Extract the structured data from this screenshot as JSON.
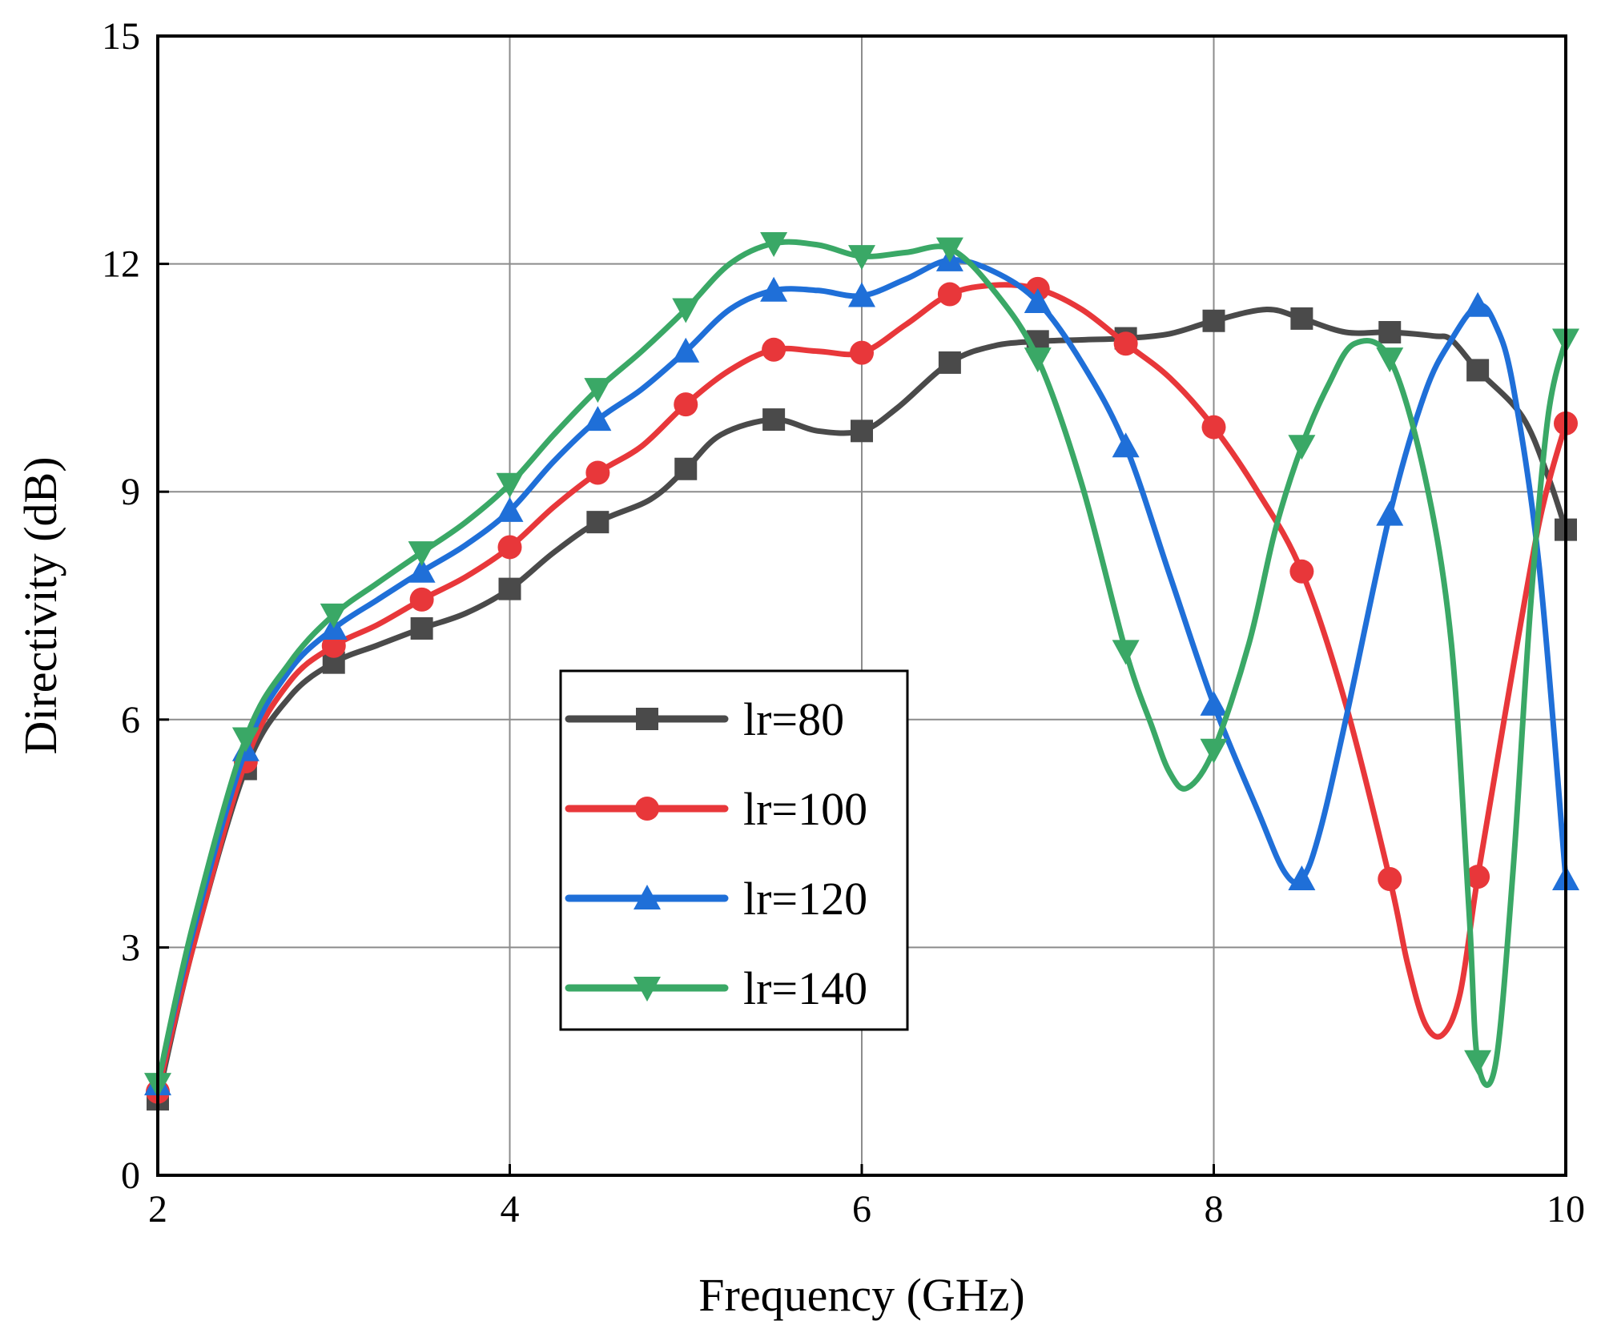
{
  "chart_data": {
    "type": "line",
    "title": "",
    "xlabel": "Frequency (GHz)",
    "ylabel": "Directivity (dB)",
    "xlim": [
      2,
      10
    ],
    "ylim": [
      0,
      15
    ],
    "xticks": [
      2,
      4,
      6,
      8,
      10
    ],
    "yticks": [
      0,
      3,
      6,
      9,
      12,
      15
    ],
    "grid": true,
    "legend_position": "center-left",
    "series": [
      {
        "name": "lr=80",
        "color": "#4a4a4a",
        "marker": "square",
        "points": [
          [
            2,
            1.0
          ],
          [
            2.2,
            3.0
          ],
          [
            2.5,
            5.35
          ],
          [
            2.75,
            6.3
          ],
          [
            3,
            6.75
          ],
          [
            3.25,
            6.98
          ],
          [
            3.5,
            7.2
          ],
          [
            3.75,
            7.4
          ],
          [
            4,
            7.72
          ],
          [
            4.25,
            8.2
          ],
          [
            4.5,
            8.6
          ],
          [
            4.8,
            8.9
          ],
          [
            5,
            9.3
          ],
          [
            5.2,
            9.75
          ],
          [
            5.5,
            9.95
          ],
          [
            5.75,
            9.8
          ],
          [
            6,
            9.8
          ],
          [
            6.2,
            10.1
          ],
          [
            6.5,
            10.7
          ],
          [
            6.75,
            10.92
          ],
          [
            7,
            10.98
          ],
          [
            7.25,
            11.0
          ],
          [
            7.5,
            11.02
          ],
          [
            7.75,
            11.08
          ],
          [
            8,
            11.25
          ],
          [
            8.3,
            11.4
          ],
          [
            8.5,
            11.28
          ],
          [
            8.75,
            11.1
          ],
          [
            9,
            11.1
          ],
          [
            9.25,
            11.05
          ],
          [
            9.35,
            11.0
          ],
          [
            9.5,
            10.6
          ],
          [
            9.75,
            10.0
          ],
          [
            9.9,
            9.2
          ],
          [
            10,
            8.5
          ]
        ],
        "marker_x": [
          2,
          2.5,
          3,
          3.5,
          4,
          4.5,
          5,
          5.5,
          6,
          6.5,
          7,
          7.5,
          8,
          8.5,
          9,
          9.5,
          10
        ]
      },
      {
        "name": "lr=100",
        "color": "#e8373a",
        "marker": "circle",
        "points": [
          [
            2,
            1.1
          ],
          [
            2.2,
            3.0
          ],
          [
            2.5,
            5.45
          ],
          [
            2.75,
            6.5
          ],
          [
            3,
            6.97
          ],
          [
            3.25,
            7.25
          ],
          [
            3.5,
            7.58
          ],
          [
            3.75,
            7.88
          ],
          [
            4,
            8.27
          ],
          [
            4.25,
            8.8
          ],
          [
            4.5,
            9.25
          ],
          [
            4.75,
            9.6
          ],
          [
            5,
            10.15
          ],
          [
            5.25,
            10.6
          ],
          [
            5.5,
            10.87
          ],
          [
            5.75,
            10.85
          ],
          [
            6,
            10.83
          ],
          [
            6.25,
            11.2
          ],
          [
            6.5,
            11.6
          ],
          [
            6.75,
            11.72
          ],
          [
            7,
            11.67
          ],
          [
            7.25,
            11.4
          ],
          [
            7.5,
            10.95
          ],
          [
            7.75,
            10.5
          ],
          [
            8,
            9.85
          ],
          [
            8.25,
            9.0
          ],
          [
            8.5,
            7.95
          ],
          [
            8.75,
            6.2
          ],
          [
            9,
            3.9
          ],
          [
            9.1,
            2.8
          ],
          [
            9.2,
            2.0
          ],
          [
            9.3,
            1.85
          ],
          [
            9.4,
            2.4
          ],
          [
            9.5,
            3.93
          ],
          [
            9.65,
            6.0
          ],
          [
            9.85,
            8.6
          ],
          [
            10,
            9.9
          ]
        ],
        "marker_x": [
          2,
          2.5,
          3,
          3.5,
          4,
          4.5,
          5,
          5.5,
          6,
          6.5,
          7,
          7.5,
          8,
          8.5,
          9,
          9.5,
          10
        ]
      },
      {
        "name": "lr=120",
        "color": "#1f6fd8",
        "marker": "triangle-up",
        "points": [
          [
            2,
            1.2
          ],
          [
            2.2,
            3.2
          ],
          [
            2.5,
            5.6
          ],
          [
            2.75,
            6.65
          ],
          [
            3,
            7.2
          ],
          [
            3.25,
            7.58
          ],
          [
            3.5,
            7.95
          ],
          [
            3.75,
            8.3
          ],
          [
            4,
            8.75
          ],
          [
            4.25,
            9.4
          ],
          [
            4.5,
            9.95
          ],
          [
            4.75,
            10.35
          ],
          [
            5,
            10.85
          ],
          [
            5.25,
            11.4
          ],
          [
            5.5,
            11.65
          ],
          [
            5.75,
            11.65
          ],
          [
            6,
            11.58
          ],
          [
            6.25,
            11.8
          ],
          [
            6.5,
            12.05
          ],
          [
            6.75,
            11.9
          ],
          [
            7,
            11.5
          ],
          [
            7.25,
            10.7
          ],
          [
            7.5,
            9.6
          ],
          [
            7.75,
            7.9
          ],
          [
            8,
            6.2
          ],
          [
            8.25,
            4.8
          ],
          [
            8.4,
            4.0
          ],
          [
            8.5,
            3.9
          ],
          [
            8.6,
            4.5
          ],
          [
            8.75,
            6.0
          ],
          [
            9,
            8.7
          ],
          [
            9.2,
            10.3
          ],
          [
            9.35,
            11.0
          ],
          [
            9.5,
            11.45
          ],
          [
            9.6,
            11.2
          ],
          [
            9.7,
            10.4
          ],
          [
            9.85,
            8.0
          ],
          [
            10,
            3.9
          ]
        ],
        "marker_x": [
          2,
          2.5,
          3,
          3.5,
          4,
          4.5,
          5,
          5.5,
          6,
          6.5,
          7,
          7.5,
          8,
          8.5,
          9,
          9.5,
          10
        ]
      },
      {
        "name": "lr=140",
        "color": "#3aa866",
        "marker": "triangle-down",
        "points": [
          [
            2,
            1.2
          ],
          [
            2.2,
            3.3
          ],
          [
            2.5,
            5.75
          ],
          [
            2.75,
            6.75
          ],
          [
            3,
            7.38
          ],
          [
            3.25,
            7.8
          ],
          [
            3.5,
            8.2
          ],
          [
            3.75,
            8.6
          ],
          [
            4,
            9.1
          ],
          [
            4.25,
            9.75
          ],
          [
            4.5,
            10.35
          ],
          [
            4.75,
            10.85
          ],
          [
            5,
            11.4
          ],
          [
            5.25,
            12.0
          ],
          [
            5.5,
            12.27
          ],
          [
            5.75,
            12.25
          ],
          [
            6,
            12.1
          ],
          [
            6.25,
            12.15
          ],
          [
            6.5,
            12.2
          ],
          [
            6.75,
            11.65
          ],
          [
            7,
            10.75
          ],
          [
            7.25,
            9.1
          ],
          [
            7.5,
            6.9
          ],
          [
            7.65,
            5.9
          ],
          [
            7.75,
            5.3
          ],
          [
            7.85,
            5.1
          ],
          [
            8,
            5.6
          ],
          [
            8.2,
            7.0
          ],
          [
            8.35,
            8.5
          ],
          [
            8.5,
            9.6
          ],
          [
            8.65,
            10.4
          ],
          [
            8.8,
            10.95
          ],
          [
            9,
            10.75
          ],
          [
            9.2,
            9.2
          ],
          [
            9.35,
            7.0
          ],
          [
            9.45,
            3.5
          ],
          [
            9.5,
            1.5
          ],
          [
            9.6,
            1.45
          ],
          [
            9.7,
            4.0
          ],
          [
            9.8,
            7.5
          ],
          [
            9.9,
            10.0
          ],
          [
            10,
            11.0
          ]
        ],
        "marker_x": [
          2,
          2.5,
          3,
          3.5,
          4,
          4.5,
          5,
          5.5,
          6,
          6.5,
          7,
          7.5,
          8,
          8.5,
          9,
          9.5,
          10
        ]
      }
    ]
  }
}
